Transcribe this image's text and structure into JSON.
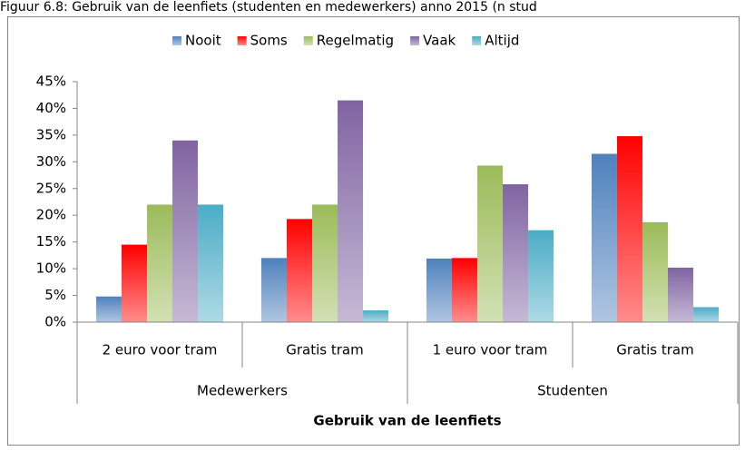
{
  "chart_data": {
    "type": "bar",
    "title": "Figuur 6.8: Gebruik van de leenfiets (studenten en medewerkers) anno 2015 (n stud",
    "x_label": "Gebruik van de leenfiets",
    "categories": [
      "2 euro voor tram",
      "Gratis tram",
      "1 euro voor tram",
      "Gratis tram"
    ],
    "groups": [
      "Medewerkers",
      "Studenten"
    ],
    "series": [
      {
        "name": "Nooit",
        "color": "#4f81bd",
        "values": [
          4.8,
          12,
          11.9,
          31.5
        ]
      },
      {
        "name": "Soms",
        "color": "#ff0000",
        "values": [
          14.5,
          19.3,
          12,
          34.8
        ]
      },
      {
        "name": "Regelmatig",
        "color": "#9bbb59",
        "values": [
          22,
          22,
          29.3,
          18.7
        ]
      },
      {
        "name": "Vaak",
        "color": "#8064a2",
        "values": [
          34,
          41.5,
          25.8,
          10.2
        ]
      },
      {
        "name": "Altijd",
        "color": "#4bacc6",
        "values": [
          22,
          2.2,
          17.2,
          2.8
        ]
      }
    ],
    "ylim": [
      0,
      45
    ],
    "yticks": [
      {
        "value": 0,
        "label": "0%"
      },
      {
        "value": 5,
        "label": "5%"
      },
      {
        "value": 10,
        "label": "10%"
      },
      {
        "value": 15,
        "label": "15%"
      },
      {
        "value": 20,
        "label": "20%"
      },
      {
        "value": 25,
        "label": "25%"
      },
      {
        "value": 30,
        "label": "30%"
      },
      {
        "value": 35,
        "label": "35%"
      },
      {
        "value": 40,
        "label": "40%"
      },
      {
        "value": 45,
        "label": "45%"
      }
    ],
    "grid": false,
    "legend": "top"
  }
}
